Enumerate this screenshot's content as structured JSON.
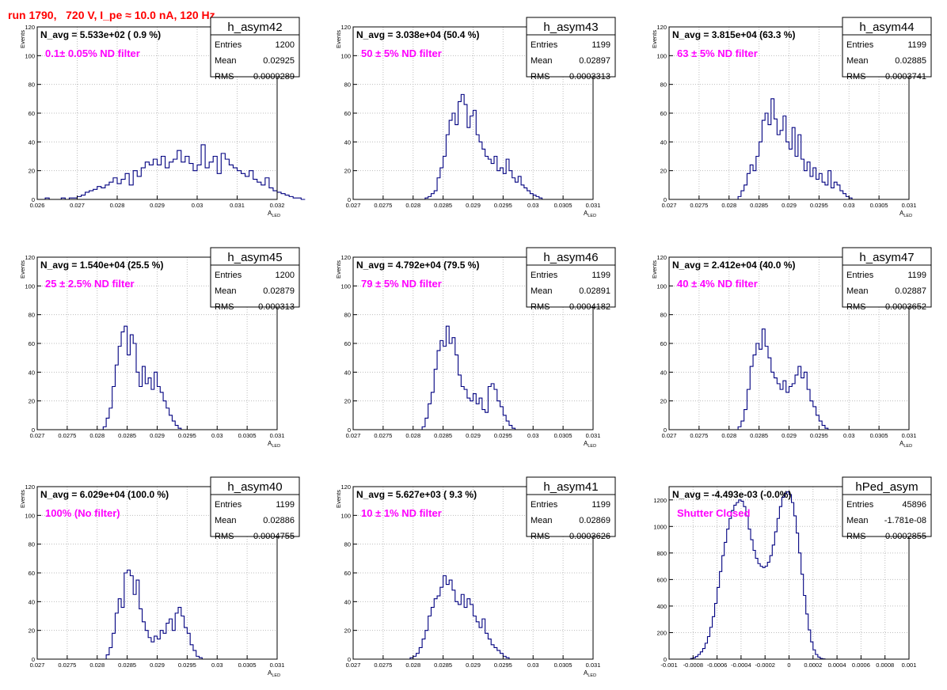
{
  "run_title": "run 1790,   720 V, I_pe ≈ 10.0 nA, 120 Hz",
  "colors": {
    "title": "#ff0000",
    "filter_text": "#ff00ff",
    "histogram": "#000080",
    "grid": "#bdbdbd",
    "axis": "#000000"
  },
  "stats_labels": {
    "entries": "Entries",
    "mean": "Mean",
    "rms": "RMS"
  },
  "chart_data": [
    {
      "type": "histogram",
      "name": "h_asym42",
      "navg": "N_avg = 5.533e+02 ( 0.9 %)",
      "filter": "0.1± 0.05% ND filter",
      "entries": "1200",
      "mean": "0.02925",
      "rms": "0.0009289",
      "xlabel": "A",
      "xlabel_sub": "LED",
      "ylabel": "Events",
      "xlim": [
        0.026,
        0.032
      ],
      "ylim": [
        0,
        120
      ],
      "xticks": [
        0.026,
        0.027,
        0.028,
        0.029,
        0.03,
        0.031,
        0.032
      ],
      "xtick_labels": [
        "0.026",
        "0.027",
        "0.028",
        "0.029",
        "0.03",
        "0.031",
        "0.032"
      ],
      "yticks": [
        0,
        20,
        40,
        60,
        80,
        100,
        120
      ],
      "ytick_labels": [
        "0",
        "20",
        "40",
        "60",
        "80",
        "100",
        "120"
      ],
      "bins": {
        "start": 0.0261,
        "width": 0.0001,
        "values": [
          0,
          1,
          0,
          0,
          0,
          1,
          0,
          1,
          1,
          2,
          3,
          5,
          6,
          7,
          9,
          8,
          10,
          12,
          15,
          11,
          14,
          18,
          10,
          20,
          16,
          22,
          26,
          24,
          28,
          24,
          30,
          22,
          26,
          28,
          34,
          26,
          30,
          25,
          20,
          24,
          38,
          22,
          26,
          30,
          18,
          32,
          28,
          24,
          22,
          20,
          18,
          16,
          20,
          14,
          12,
          10,
          15,
          8,
          6,
          5,
          4,
          3,
          2,
          1,
          1,
          0
        ]
      }
    },
    {
      "type": "histogram",
      "name": "h_asym43",
      "navg": "N_avg = 3.038e+04 (50.4 %)",
      "filter": "50 ± 5% ND filter",
      "entries": "1199",
      "mean": "0.02897",
      "rms": "0.0003313",
      "xlabel": "A",
      "xlabel_sub": "LED",
      "ylabel": "Events",
      "xlim": [
        0.027,
        0.031
      ],
      "ylim": [
        0,
        120
      ],
      "xticks": [
        0.027,
        0.0275,
        0.028,
        0.0285,
        0.029,
        0.0295,
        0.03,
        0.0305,
        0.031
      ],
      "xtick_labels": [
        "0.027",
        "0.0275",
        "0.028",
        "0.0285",
        "0.029",
        "0.0295",
        "0.03",
        "0.0305",
        "0.031"
      ],
      "yticks": [
        0,
        20,
        40,
        60,
        80,
        100,
        120
      ],
      "ytick_labels": [
        "0",
        "20",
        "40",
        "60",
        "80",
        "100",
        "120"
      ],
      "bins": {
        "start": 0.02815,
        "width": 5e-05,
        "values": [
          0,
          1,
          2,
          4,
          6,
          15,
          22,
          30,
          45,
          55,
          60,
          52,
          68,
          73,
          66,
          50,
          58,
          62,
          45,
          40,
          35,
          30,
          28,
          25,
          30,
          20,
          22,
          18,
          28,
          20,
          15,
          12,
          16,
          10,
          8,
          6,
          4,
          3,
          2,
          1,
          0
        ]
      }
    },
    {
      "type": "histogram",
      "name": "h_asym44",
      "navg": "N_avg = 3.815e+04 (63.3 %)",
      "filter": "63 ± 5% ND filter",
      "entries": "1199",
      "mean": "0.02885",
      "rms": "0.0003741",
      "xlabel": "A",
      "xlabel_sub": "LED",
      "ylabel": "Events",
      "xlim": [
        0.027,
        0.031
      ],
      "ylim": [
        0,
        120
      ],
      "xticks": [
        0.027,
        0.0275,
        0.028,
        0.0285,
        0.029,
        0.0295,
        0.03,
        0.0305,
        0.031
      ],
      "xtick_labels": [
        "0.027",
        "0.0275",
        "0.028",
        "0.0285",
        "0.029",
        "0.0295",
        "0.03",
        "0.0305",
        "0.031"
      ],
      "yticks": [
        0,
        20,
        40,
        60,
        80,
        100,
        120
      ],
      "ytick_labels": [
        "0",
        "20",
        "40",
        "60",
        "80",
        "100",
        "120"
      ],
      "bins": {
        "start": 0.0281,
        "width": 5e-05,
        "values": [
          0,
          2,
          6,
          10,
          18,
          24,
          20,
          30,
          40,
          55,
          60,
          52,
          70,
          56,
          45,
          48,
          58,
          40,
          35,
          50,
          30,
          45,
          28,
          20,
          26,
          16,
          22,
          14,
          18,
          12,
          10,
          20,
          8,
          12,
          10,
          6,
          4,
          2,
          1,
          0
        ]
      }
    },
    {
      "type": "histogram",
      "name": "h_asym45",
      "navg": "N_avg = 1.540e+04 (25.5 %)",
      "filter": "25 ± 2.5% ND filter",
      "entries": "1200",
      "mean": "0.02879",
      "rms": "0.000313",
      "xlabel": "A",
      "xlabel_sub": "LED",
      "ylabel": "Events",
      "xlim": [
        0.027,
        0.031
      ],
      "ylim": [
        0,
        120
      ],
      "xticks": [
        0.027,
        0.0275,
        0.028,
        0.0285,
        0.029,
        0.0295,
        0.03,
        0.0305,
        0.031
      ],
      "xtick_labels": [
        "0.027",
        "0.0275",
        "0.028",
        "0.0285",
        "0.029",
        "0.0295",
        "0.03",
        "0.0305",
        "0.031"
      ],
      "yticks": [
        0,
        20,
        40,
        60,
        80,
        100,
        120
      ],
      "ytick_labels": [
        "0",
        "20",
        "40",
        "60",
        "80",
        "100",
        "120"
      ],
      "bins": {
        "start": 0.02805,
        "width": 5e-05,
        "values": [
          0,
          2,
          8,
          15,
          30,
          45,
          58,
          68,
          72,
          52,
          66,
          60,
          40,
          30,
          44,
          32,
          36,
          28,
          40,
          30,
          26,
          20,
          15,
          10,
          6,
          3,
          1,
          0
        ]
      }
    },
    {
      "type": "histogram",
      "name": "h_asym46",
      "navg": "N_avg = 4.792e+04 (79.5 %)",
      "filter": "79 ± 5% ND filter",
      "entries": "1199",
      "mean": "0.02891",
      "rms": "0.0004182",
      "xlabel": "A",
      "xlabel_sub": "LED",
      "ylabel": "Events",
      "xlim": [
        0.027,
        0.031
      ],
      "ylim": [
        0,
        120
      ],
      "xticks": [
        0.027,
        0.0275,
        0.028,
        0.0285,
        0.029,
        0.0295,
        0.03,
        0.0305,
        0.031
      ],
      "xtick_labels": [
        "0.027",
        "0.0275",
        "0.028",
        "0.0285",
        "0.029",
        "0.0295",
        "0.03",
        "0.0305",
        "0.031"
      ],
      "yticks": [
        0,
        20,
        40,
        60,
        80,
        100,
        120
      ],
      "ytick_labels": [
        "0",
        "20",
        "40",
        "60",
        "80",
        "100",
        "120"
      ],
      "bins": {
        "start": 0.0281,
        "width": 5e-05,
        "values": [
          0,
          2,
          8,
          18,
          26,
          42,
          55,
          62,
          58,
          72,
          60,
          64,
          52,
          38,
          30,
          28,
          22,
          20,
          25,
          18,
          22,
          14,
          12,
          30,
          32,
          28,
          20,
          16,
          10,
          6,
          3,
          1,
          0
        ]
      }
    },
    {
      "type": "histogram",
      "name": "h_asym47",
      "navg": "N_avg = 2.412e+04 (40.0 %)",
      "filter": "40 ± 4% ND filter",
      "entries": "1199",
      "mean": "0.02887",
      "rms": "0.0003652",
      "xlabel": "A",
      "xlabel_sub": "LED",
      "ylabel": "Events",
      "xlim": [
        0.027,
        0.031
      ],
      "ylim": [
        0,
        120
      ],
      "xticks": [
        0.027,
        0.0275,
        0.028,
        0.0285,
        0.029,
        0.0295,
        0.03,
        0.0305,
        0.031
      ],
      "xtick_labels": [
        "0.027",
        "0.0275",
        "0.028",
        "0.0285",
        "0.029",
        "0.0295",
        "0.03",
        "0.0305",
        "0.031"
      ],
      "yticks": [
        0,
        20,
        40,
        60,
        80,
        100,
        120
      ],
      "ytick_labels": [
        "0",
        "20",
        "40",
        "60",
        "80",
        "100",
        "120"
      ],
      "bins": {
        "start": 0.0281,
        "width": 5e-05,
        "values": [
          0,
          2,
          6,
          14,
          28,
          44,
          52,
          60,
          56,
          70,
          58,
          50,
          40,
          36,
          32,
          28,
          34,
          26,
          30,
          32,
          38,
          44,
          36,
          40,
          28,
          20,
          16,
          10,
          6,
          3,
          1,
          0
        ]
      }
    },
    {
      "type": "histogram",
      "name": "h_asym40",
      "navg": "N_avg = 6.029e+04 (100.0 %)",
      "filter": "100% (No filter)",
      "entries": "1199",
      "mean": "0.02886",
      "rms": "0.0004755",
      "xlabel": "A",
      "xlabel_sub": "LED",
      "ylabel": "Events",
      "xlim": [
        0.027,
        0.031
      ],
      "ylim": [
        0,
        120
      ],
      "xticks": [
        0.027,
        0.0275,
        0.028,
        0.0285,
        0.029,
        0.0295,
        0.03,
        0.0305,
        0.031
      ],
      "xtick_labels": [
        "0.027",
        "0.0275",
        "0.028",
        "0.0285",
        "0.029",
        "0.0295",
        "0.03",
        "0.0305",
        "0.031"
      ],
      "yticks": [
        0,
        20,
        40,
        60,
        80,
        100,
        120
      ],
      "ytick_labels": [
        "0",
        "20",
        "40",
        "60",
        "80",
        "100",
        "120"
      ],
      "bins": {
        "start": 0.0281,
        "width": 5e-05,
        "values": [
          0,
          3,
          8,
          18,
          32,
          42,
          36,
          60,
          62,
          58,
          45,
          55,
          35,
          26,
          20,
          15,
          12,
          16,
          14,
          20,
          18,
          25,
          28,
          20,
          32,
          36,
          30,
          22,
          18,
          10,
          6,
          2,
          1,
          0
        ]
      }
    },
    {
      "type": "histogram",
      "name": "h_asym41",
      "navg": "N_avg = 5.627e+03 ( 9.3 %)",
      "filter": "10 ± 1% ND filter",
      "entries": "1199",
      "mean": "0.02869",
      "rms": "0.0003626",
      "xlabel": "A",
      "xlabel_sub": "LED",
      "ylabel": "Events",
      "xlim": [
        0.027,
        0.031
      ],
      "ylim": [
        0,
        120
      ],
      "xticks": [
        0.027,
        0.0275,
        0.028,
        0.0285,
        0.029,
        0.0295,
        0.03,
        0.0305,
        0.031
      ],
      "xtick_labels": [
        "0.027",
        "0.0275",
        "0.028",
        "0.0285",
        "0.029",
        "0.0295",
        "0.03",
        "0.0305",
        "0.031"
      ],
      "yticks": [
        0,
        20,
        40,
        60,
        80,
        100,
        120
      ],
      "ytick_labels": [
        "0",
        "20",
        "40",
        "60",
        "80",
        "100",
        "120"
      ],
      "bins": {
        "start": 0.0279,
        "width": 5e-05,
        "values": [
          0,
          1,
          2,
          4,
          8,
          14,
          20,
          30,
          36,
          42,
          44,
          50,
          58,
          52,
          55,
          48,
          40,
          38,
          45,
          36,
          42,
          38,
          30,
          26,
          22,
          28,
          18,
          14,
          10,
          8,
          6,
          4,
          2,
          1,
          0
        ]
      }
    },
    {
      "type": "histogram",
      "name": "hPed_asym",
      "navg": "N_avg = -4.493e-03 (-0.0%)",
      "filter": "Shutter Closed",
      "entries": "45896",
      "mean": "-1.781e-08",
      "rms": "0.0002855",
      "xlabel": "",
      "xlabel_sub": "",
      "ylabel": "",
      "xlim": [
        -0.001,
        0.001
      ],
      "ylim": [
        0,
        1300
      ],
      "xticks": [
        -0.001,
        -0.0008,
        -0.0006,
        -0.0004,
        -0.0002,
        0,
        0.0002,
        0.0004,
        0.0006,
        0.0008,
        0.001
      ],
      "xtick_labels": [
        "-0.001",
        "-0.0008",
        "-0.0006",
        "-0.0004",
        "-0.0002",
        "0",
        "0.0002",
        "0.0004",
        "0.0006",
        "0.0008",
        "0.001"
      ],
      "yticks": [
        0,
        200,
        400,
        600,
        800,
        1000,
        1200
      ],
      "ytick_labels": [
        "0",
        "200",
        "400",
        "600",
        "800",
        "1000",
        "1200"
      ],
      "bins": {
        "start": -0.00084,
        "width": 2e-05,
        "values": [
          0,
          5,
          10,
          20,
          35,
          55,
          80,
          120,
          170,
          240,
          320,
          420,
          540,
          660,
          780,
          880,
          980,
          1060,
          1120,
          1160,
          1180,
          1200,
          1190,
          1150,
          1080,
          980,
          900,
          820,
          760,
          720,
          700,
          690,
          700,
          730,
          780,
          860,
          960,
          1060,
          1150,
          1220,
          1250,
          1260,
          1240,
          1180,
          1080,
          950,
          800,
          640,
          480,
          340,
          220,
          130,
          70,
          35,
          15,
          5,
          2,
          0
        ]
      }
    }
  ]
}
